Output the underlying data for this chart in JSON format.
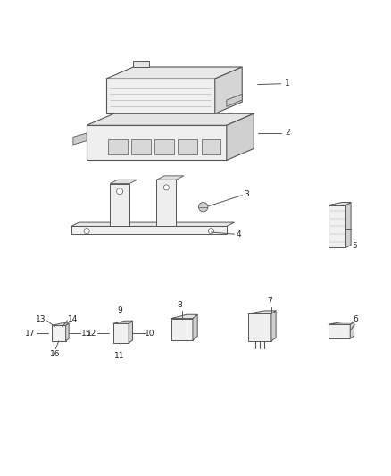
{
  "bg_color": "#ffffff",
  "line_color": "#555555",
  "text_color": "#222222",
  "fig_width": 4.38,
  "fig_height": 5.33,
  "dpi": 100
}
